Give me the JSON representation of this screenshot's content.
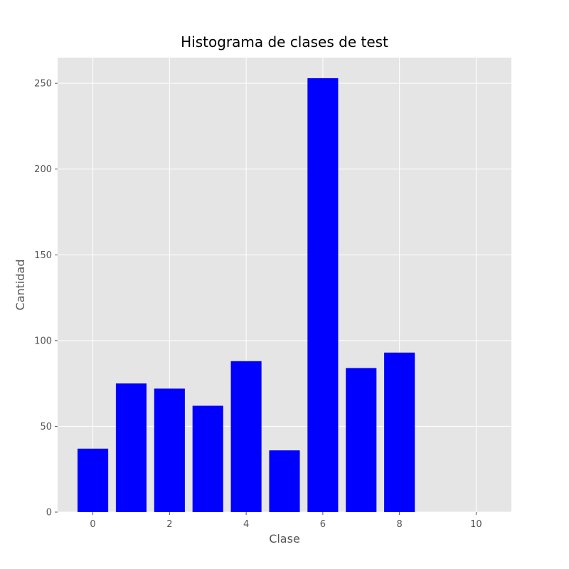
{
  "chart_data": {
    "type": "bar",
    "title": "Histograma de clases de test",
    "xlabel": "Clase",
    "ylabel": "Cantidad",
    "categories": [
      0,
      1,
      2,
      3,
      4,
      5,
      6,
      7,
      8
    ],
    "values": [
      37,
      75,
      72,
      62,
      88,
      36,
      253,
      84,
      93
    ],
    "xlim": [
      -0.92,
      10.92
    ],
    "ylim": [
      0,
      265
    ],
    "xticks": [
      0,
      2,
      4,
      6,
      8,
      10
    ],
    "yticks": [
      0,
      50,
      100,
      150,
      200,
      250
    ],
    "bar_width": 0.8,
    "bar_color": "#0000ff",
    "background": "#e5e5e5",
    "grid": true,
    "grid_color": "#ffffff"
  }
}
